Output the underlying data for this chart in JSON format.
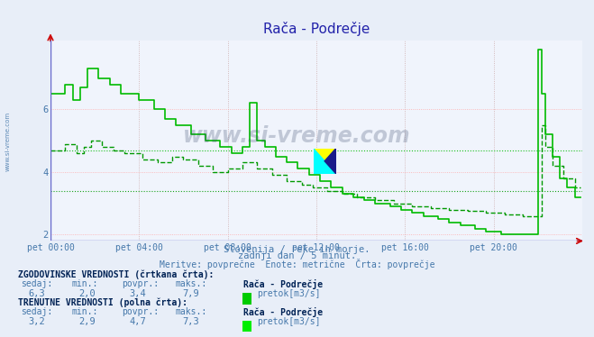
{
  "title": "Rača - Podrečje",
  "subtitle1": "Slovenija / reke in morje.",
  "subtitle2": "zadnji dan / 5 minut.",
  "subtitle3": "Meritve: povprečne  Enote: metrične  Črta: povprečje",
  "xlabel_ticks": [
    "pet 00:00",
    "pet 04:00",
    "pet 08:00",
    "pet 12:00",
    "pet 16:00",
    "pet 20:00"
  ],
  "yticks": [
    2,
    4,
    6
  ],
  "ylim": [
    1.8,
    8.2
  ],
  "xlim": [
    0,
    288
  ],
  "background_color": "#e8eef8",
  "plot_bg_color": "#f0f4fc",
  "grid_color_h": "#ffbbbb",
  "grid_color_v": "#ddbbbb",
  "axis_color": "#6666cc",
  "title_color": "#2222aa",
  "text_color": "#4477aa",
  "solid_color": "#00bb00",
  "dashed_color": "#009900",
  "hist_sedaj": 6.3,
  "hist_min": 2.0,
  "hist_povpr": 3.4,
  "hist_maks": 7.9,
  "curr_sedaj": 3.2,
  "curr_min": 2.9,
  "curr_povpr": 4.7,
  "curr_maks": 7.3,
  "station": "Rača - Podrečje",
  "unit": "pretok[m3/s]",
  "legend_hist": "ZGODOVINSKE VREDNOSTI (črtkana črta):",
  "legend_curr": "TRENUTNE VREDNOSTI (polna črta):",
  "col_sedaj": "sedaj:",
  "col_min": "min.:",
  "col_povpr": "povpr.:",
  "col_maks": "maks.:"
}
